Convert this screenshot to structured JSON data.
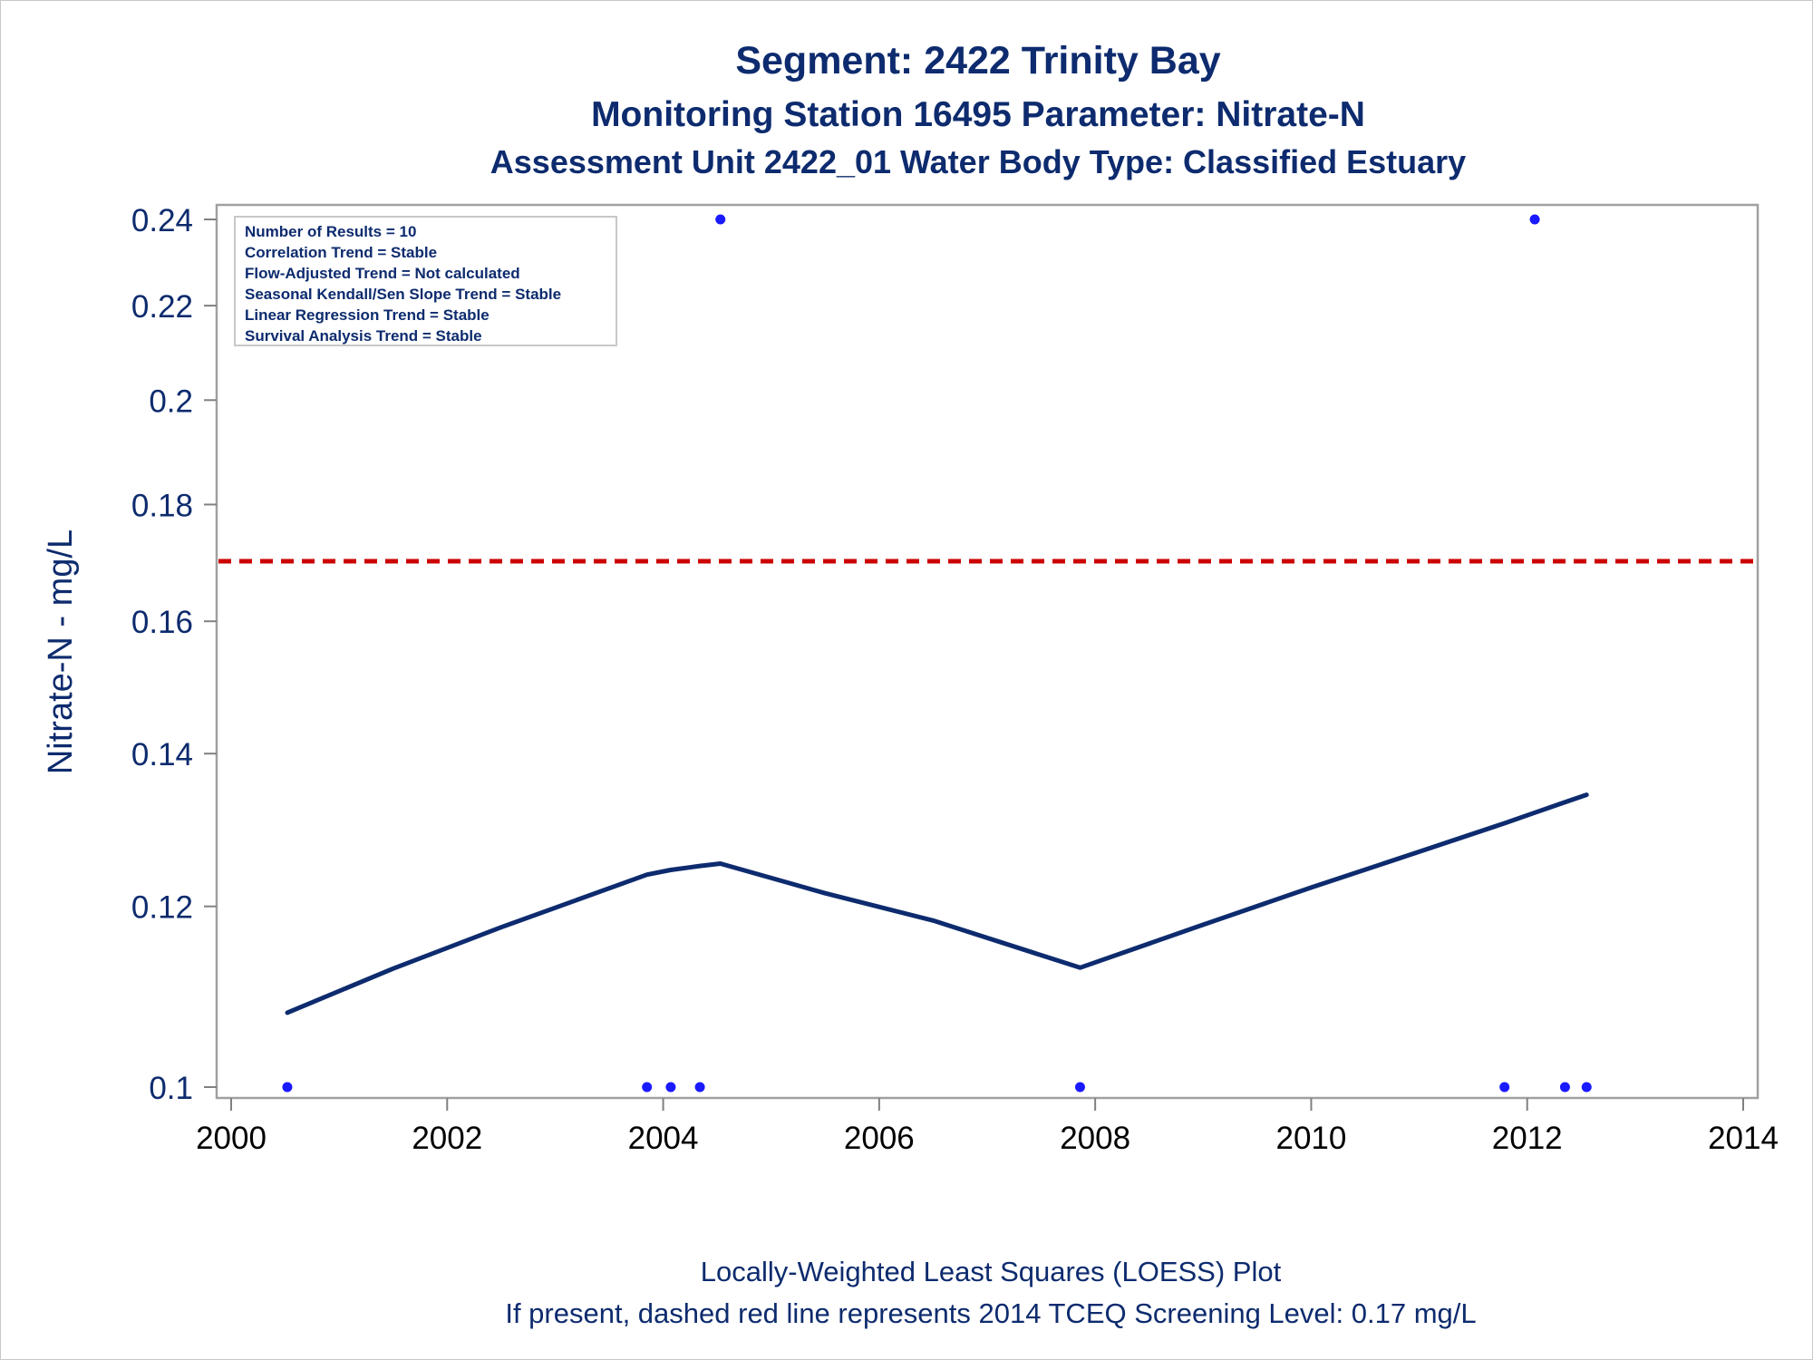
{
  "chart_data": {
    "type": "scatter",
    "title": "Segment: 2422  Trinity Bay",
    "subtitle_1": "Monitoring Station 16495 Parameter: Nitrate-N",
    "subtitle_2": "Assessment Unit 2422_01   Water Body Type: Classified Estuary",
    "ylabel": "Nitrate-N - mg/L",
    "xlabel": "",
    "y_scale": "log",
    "xlim": [
      2000,
      2014
    ],
    "ylim": [
      0.1,
      0.24
    ],
    "x_ticks": [
      2000,
      2002,
      2004,
      2006,
      2008,
      2010,
      2012,
      2014
    ],
    "y_ticks": [
      0.1,
      0.12,
      0.14,
      0.16,
      0.18,
      0.2,
      0.22,
      0.24
    ],
    "x_tick_labels": [
      "2000",
      "2002",
      "2004",
      "2006",
      "2008",
      "2010",
      "2012",
      "2014"
    ],
    "y_tick_labels": [
      "0.1",
      "0.12",
      "0.14",
      "0.16",
      "0.18",
      "0.2",
      "0.22",
      "0.24"
    ],
    "grid": false,
    "series": [
      {
        "type": "scatter",
        "color": "#1a1aff",
        "x": [
          2000.52,
          2003.85,
          2004.07,
          2004.34,
          2004.53,
          2007.86,
          2011.79,
          2012.07,
          2012.35,
          2012.55
        ],
        "y": [
          0.1,
          0.1,
          0.1,
          0.1,
          0.24,
          0.1,
          0.1,
          0.24,
          0.1,
          0.1
        ]
      },
      {
        "type": "line",
        "color": "#0d2b6e",
        "x": [
          2000.52,
          2001.5,
          2002.5,
          2003.85,
          2004.07,
          2004.34,
          2004.53,
          2005.5,
          2006.5,
          2007.86,
          2009.0,
          2010.0,
          2011.0,
          2011.79,
          2012.07,
          2012.35,
          2012.55
        ],
        "y": [
          0.1078,
          0.1127,
          0.1175,
          0.1239,
          0.1245,
          0.125,
          0.1253,
          0.1216,
          0.1183,
          0.1128,
          0.1178,
          0.1223,
          0.1268,
          0.1305,
          0.1319,
          0.1333,
          0.1343
        ]
      },
      {
        "type": "reference-line",
        "color": "#cc0000",
        "y": 0.17,
        "style": "dashed"
      }
    ],
    "annotation_box": {
      "lines": [
        "Number of Results = 10",
        "Correlation Trend = Stable",
        "Flow-Adjusted Trend = Not calculated",
        "Seasonal Kendall/Sen Slope Trend = Stable",
        "Linear Regression Trend = Stable",
        "Survival Analysis Trend = Stable"
      ],
      "placement": "top-left"
    },
    "footnotes": [
      "Locally-Weighted Least Squares (LOESS) Plot",
      "If present, dashed red line represents 2014 TCEQ Screening Level: 0.17 mg/L"
    ]
  }
}
